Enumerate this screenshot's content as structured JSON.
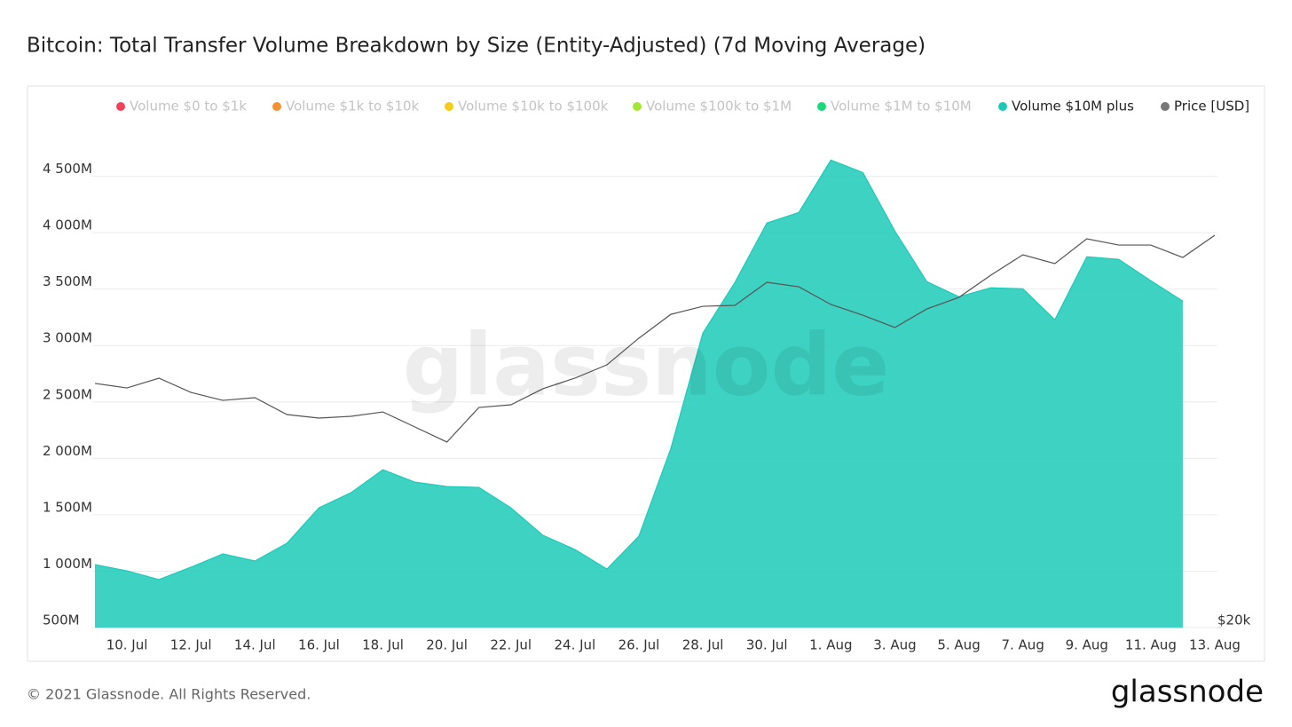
{
  "chart_data": {
    "type": "area",
    "title": "Bitcoin: Total Transfer Volume Breakdown by Size (Entity-Adjusted) (7d Moving Average)",
    "categories": [
      null,
      "10. Jul",
      null,
      "12. Jul",
      null,
      "14. Jul",
      null,
      "16. Jul",
      null,
      "18. Jul",
      null,
      "20. Jul",
      null,
      "22. Jul",
      null,
      "24. Jul",
      null,
      "26. Jul",
      null,
      "28. Jul",
      null,
      "30. Jul",
      null,
      "1. Aug",
      null,
      "3. Aug",
      null,
      "5. Aug",
      null,
      "7. Aug",
      null,
      "9. Aug",
      null,
      "11. Aug",
      null,
      "13. Aug"
    ],
    "hidden_series": [
      {
        "name": "Volume $0 to $1k",
        "color": "#f2425a"
      },
      {
        "name": "Volume $1k to $10k",
        "color": "#f7902f"
      },
      {
        "name": "Volume $10k to $100k",
        "color": "#f5cc1a"
      },
      {
        "name": "Volume $100k to $1M",
        "color": "#a3e635"
      },
      {
        "name": "Volume $1M to $10M",
        "color": "#19d97a"
      }
    ],
    "series": [
      {
        "name": "Volume $10M plus",
        "color": "#1ccab8",
        "values": [
          1058,
          1003,
          925,
          1035,
          1153,
          1090,
          1247,
          1561,
          1695,
          1899,
          1789,
          1750,
          1742,
          1561,
          1318,
          1192,
          1019,
          1310,
          2088,
          3110,
          3558,
          4085,
          4179,
          4643,
          4533,
          4014,
          3566,
          3432,
          3511,
          3503,
          3228,
          3786,
          3763,
          3574,
          3393,
          null
        ]
      },
      {
        "name": "Price [USD]",
        "color": "#777777",
        "axis": "y2",
        "values": [
          33920,
          33590,
          34310,
          33270,
          32700,
          32890,
          31710,
          31470,
          31590,
          31890,
          30870,
          29880,
          32200,
          32390,
          33530,
          34310,
          35310,
          37410,
          39390,
          40080,
          40160,
          42220,
          41810,
          40240,
          39320,
          38280,
          39850,
          40860,
          42870,
          44810,
          43960,
          46380,
          45760,
          45760,
          44550,
          46740
        ]
      }
    ],
    "ylim": [
      500,
      5000
    ],
    "yticks": [
      {
        "value": 500,
        "label": "500M"
      },
      {
        "value": 1000,
        "label": "1 000M"
      },
      {
        "value": 1500,
        "label": "1 500M"
      },
      {
        "value": 2000,
        "label": "2 000M"
      },
      {
        "value": 2500,
        "label": "2 500M"
      },
      {
        "value": 3000,
        "label": "3 000M"
      },
      {
        "value": 3500,
        "label": "3 500M"
      },
      {
        "value": 4000,
        "label": "4 000M"
      },
      {
        "value": 4500,
        "label": "4 500M"
      }
    ],
    "y2lim": [
      20000,
      60000
    ],
    "y2ticks": [
      {
        "value": 20000,
        "label": "$20k"
      }
    ],
    "y2_log": true,
    "grid": true,
    "legend": "top"
  },
  "watermark": "glassnode",
  "footer": "© 2021 Glassnode. All Rights Reserved.",
  "logo": "glassnode"
}
